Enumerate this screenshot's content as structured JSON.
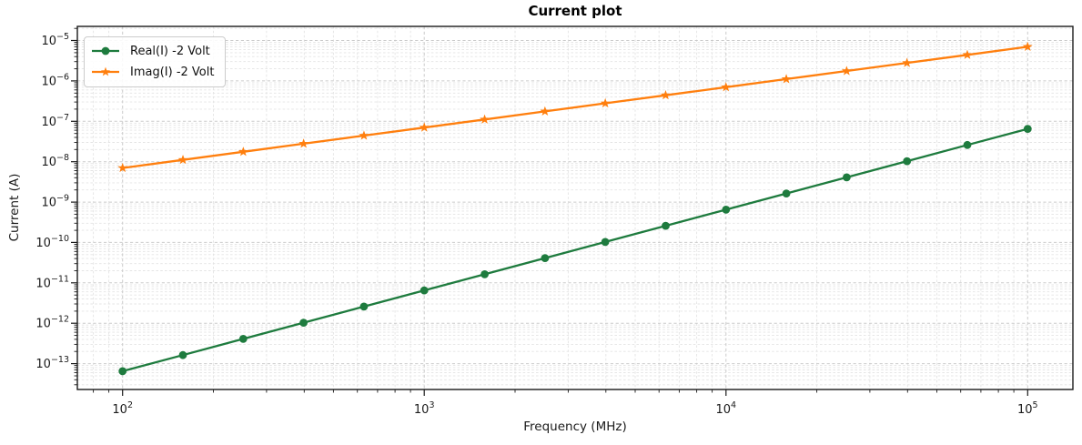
{
  "chart_data": {
    "type": "line",
    "title": "Current plot",
    "xlabel": "Frequency (MHz)",
    "ylabel": "Current (A)",
    "x_scale": "log",
    "y_scale": "log",
    "grid": "major and minor, light gray dashed",
    "legend_position": "upper left",
    "xlim": [
      70.8,
      141254
    ],
    "ylim": [
      2.3e-14,
      2.2e-05
    ],
    "x_log_range": [
      1.85,
      5.15
    ],
    "y_log_range": [
      -13.64,
      -4.65
    ],
    "x_tick_exponents": [
      2,
      3,
      4,
      5
    ],
    "y_tick_exponents": [
      -5,
      -6,
      -7,
      -8,
      -9,
      -10,
      -11,
      -12,
      -13
    ],
    "x": [
      100,
      158.5,
      251.2,
      398.1,
      631,
      1000,
      1585,
      2512,
      3981,
      6310,
      10000,
      15849,
      25119,
      39811,
      63096,
      100000
    ],
    "series": [
      {
        "name": "Real(I) -2 Volt",
        "color": "#1e7b3e",
        "marker": "circle",
        "values": [
          6.5e-14,
          1.63e-13,
          4.1e-13,
          1.03e-12,
          2.59e-12,
          6.5e-12,
          1.63e-11,
          4.1e-11,
          1.03e-10,
          2.59e-10,
          6.5e-10,
          1.63e-09,
          4.1e-09,
          1.03e-08,
          2.59e-08,
          6.5e-08
        ]
      },
      {
        "name": "Imag(I) -2 Volt",
        "color": "#ff7f0e",
        "marker": "star",
        "values": [
          7e-09,
          1.11e-08,
          1.76e-08,
          2.79e-08,
          4.42e-08,
          7e-08,
          1.11e-07,
          1.76e-07,
          2.79e-07,
          4.42e-07,
          7e-07,
          1.11e-06,
          1.76e-06,
          2.79e-06,
          4.42e-06,
          7e-06
        ]
      }
    ]
  }
}
